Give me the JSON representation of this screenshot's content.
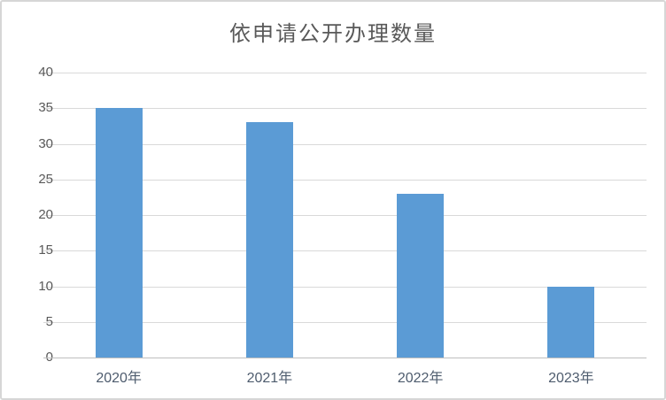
{
  "chart_data": {
    "type": "bar",
    "title": "依申请公开办理数量",
    "categories": [
      "2020年",
      "2021年",
      "2022年",
      "2023年"
    ],
    "values": [
      35,
      33,
      23,
      10
    ],
    "xlabel": "",
    "ylabel": "",
    "ylim": [
      0,
      40
    ],
    "ytick_step": 5,
    "ytick_labels": [
      "0",
      "5",
      "10",
      "15",
      "20",
      "25",
      "30",
      "35",
      "40"
    ],
    "grid": true,
    "legend_position": "none",
    "colors": {
      "bar": "#5b9bd5",
      "gridline": "#d9d9d9",
      "axis_line": "#bfbfbf",
      "ytick_text": "#595959",
      "category_text": "#4e5c6e",
      "title_text": "#595959",
      "border": "#d6d6d6",
      "background": "#ffffff"
    }
  }
}
